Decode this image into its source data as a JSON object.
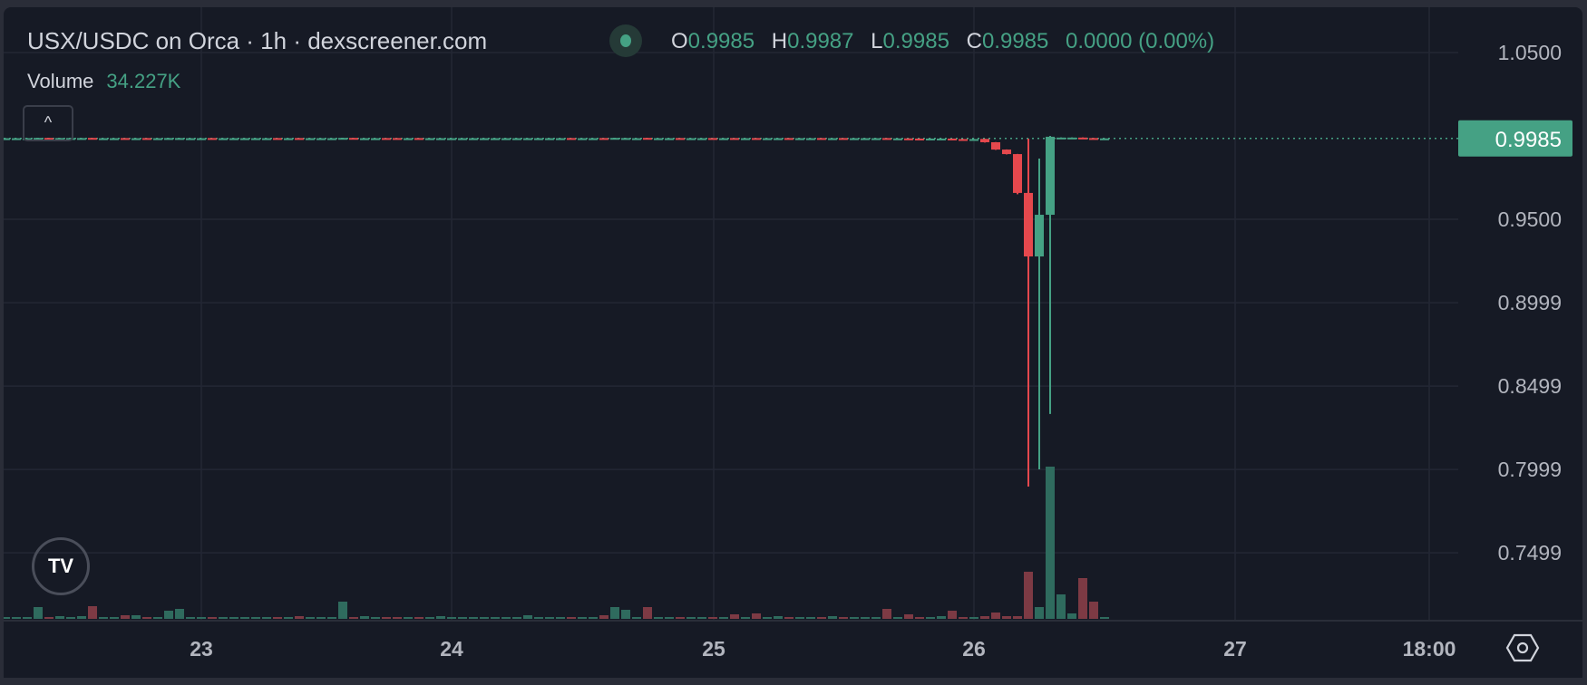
{
  "header": {
    "title": "USX/USDC on Orca · 1h · dexscreener.com",
    "ohlc": {
      "o_label": "O",
      "o": "0.9985",
      "h_label": "H",
      "h": "0.9987",
      "l_label": "L",
      "l": "0.9985",
      "c_label": "C",
      "c": "0.9985",
      "change": "0.0000 (0.00%)"
    },
    "volume_label": "Volume",
    "volume_value": "34.227K",
    "collapse_icon": "chevron-up-icon"
  },
  "colors": {
    "up": "#45a184",
    "down": "#e5484d",
    "vol_up": "#2f6b5e",
    "vol_down": "#7d3a44",
    "bg": "#161a25",
    "grid": "#232734",
    "text": "#b2b5be"
  },
  "chart_data": {
    "type": "candlestick",
    "title": "USX/USDC on Orca · 1h · dexscreener.com",
    "interval": "1h",
    "y_ticks": [
      "1.0500",
      "0.9500",
      "0.8999",
      "0.8499",
      "0.7999",
      "0.7499"
    ],
    "y_tick_values": [
      1.05,
      0.95,
      0.8999,
      0.8499,
      0.7999,
      0.7499
    ],
    "x_ticks": [
      "23",
      "24",
      "25",
      "26",
      "27",
      "18:00"
    ],
    "last_price": "0.9985",
    "grid": true,
    "first_candle": "22 day, 07:00",
    "volume_unit": "K",
    "candles_ohlcv": [
      [
        0.9984,
        0.9987,
        0.9983,
        0.9986,
        34
      ],
      [
        0.9985,
        0.9987,
        0.9984,
        0.9986,
        34
      ],
      [
        0.9985,
        0.9987,
        0.9984,
        0.9986,
        34
      ],
      [
        0.9985,
        0.9989,
        0.9984,
        0.9988,
        221
      ],
      [
        0.9988,
        0.9988,
        0.9985,
        0.9986,
        34
      ],
      [
        0.9986,
        0.9988,
        0.9985,
        0.9987,
        51
      ],
      [
        0.9986,
        0.9988,
        0.9985,
        0.9987,
        34
      ],
      [
        0.9986,
        0.9988,
        0.9985,
        0.9987,
        51
      ],
      [
        0.9988,
        0.9988,
        0.9983,
        0.9985,
        238
      ],
      [
        0.9985,
        0.9987,
        0.9984,
        0.9986,
        34
      ],
      [
        0.9985,
        0.9987,
        0.9984,
        0.9986,
        34
      ],
      [
        0.9987,
        0.9987,
        0.9984,
        0.9985,
        68
      ],
      [
        0.9985,
        0.9987,
        0.9984,
        0.9986,
        68
      ],
      [
        0.9987,
        0.9987,
        0.9984,
        0.9985,
        34
      ],
      [
        0.9985,
        0.9987,
        0.9984,
        0.9986,
        34
      ],
      [
        0.9985,
        0.9988,
        0.9984,
        0.9987,
        153
      ],
      [
        0.9985,
        0.9988,
        0.9984,
        0.9987,
        187
      ],
      [
        0.9985,
        0.9987,
        0.9984,
        0.9986,
        34
      ],
      [
        0.9985,
        0.9987,
        0.9984,
        0.9986,
        34
      ],
      [
        0.9987,
        0.9987,
        0.9984,
        0.9985,
        34
      ],
      [
        0.9985,
        0.9987,
        0.9984,
        0.9986,
        34
      ],
      [
        0.9985,
        0.9987,
        0.9984,
        0.9986,
        34
      ],
      [
        0.9985,
        0.9987,
        0.9984,
        0.9986,
        34
      ],
      [
        0.9985,
        0.9987,
        0.9984,
        0.9986,
        34
      ],
      [
        0.9985,
        0.9987,
        0.9984,
        0.9986,
        34
      ],
      [
        0.9987,
        0.9987,
        0.9984,
        0.9985,
        34
      ],
      [
        0.9985,
        0.9987,
        0.9984,
        0.9986,
        34
      ],
      [
        0.9987,
        0.9987,
        0.9984,
        0.9985,
        51
      ],
      [
        0.9985,
        0.9987,
        0.9984,
        0.9986,
        34
      ],
      [
        0.9985,
        0.9987,
        0.9984,
        0.9986,
        34
      ],
      [
        0.9985,
        0.9987,
        0.9984,
        0.9986,
        34
      ],
      [
        0.9985,
        0.9989,
        0.9984,
        0.9988,
        323
      ],
      [
        0.9988,
        0.9988,
        0.9984,
        0.9986,
        34
      ],
      [
        0.9985,
        0.9987,
        0.9984,
        0.9986,
        51
      ],
      [
        0.9985,
        0.9987,
        0.9984,
        0.9986,
        34
      ],
      [
        0.9987,
        0.9987,
        0.9984,
        0.9985,
        34
      ],
      [
        0.9987,
        0.9987,
        0.9984,
        0.9985,
        34
      ],
      [
        0.9985,
        0.9987,
        0.9984,
        0.9986,
        34
      ],
      [
        0.9987,
        0.9987,
        0.9984,
        0.9985,
        34
      ],
      [
        0.9985,
        0.9987,
        0.9984,
        0.9986,
        34
      ],
      [
        0.9985,
        0.9987,
        0.9984,
        0.9986,
        51
      ],
      [
        0.9985,
        0.9987,
        0.9984,
        0.9986,
        34
      ],
      [
        0.9985,
        0.9987,
        0.9984,
        0.9986,
        34
      ],
      [
        0.9985,
        0.9987,
        0.9984,
        0.9986,
        34
      ],
      [
        0.9985,
        0.9987,
        0.9984,
        0.9986,
        34
      ],
      [
        0.9985,
        0.9987,
        0.9984,
        0.9986,
        34
      ],
      [
        0.9985,
        0.9987,
        0.9984,
        0.9986,
        34
      ],
      [
        0.9985,
        0.9987,
        0.9984,
        0.9986,
        34
      ],
      [
        0.9985,
        0.9987,
        0.9984,
        0.9986,
        68
      ],
      [
        0.9985,
        0.9987,
        0.9984,
        0.9986,
        34
      ],
      [
        0.9985,
        0.9987,
        0.9984,
        0.9986,
        34
      ],
      [
        0.9985,
        0.9987,
        0.9984,
        0.9986,
        34
      ],
      [
        0.9987,
        0.9987,
        0.9984,
        0.9985,
        34
      ],
      [
        0.9985,
        0.9987,
        0.9984,
        0.9986,
        34
      ],
      [
        0.9985,
        0.9987,
        0.9984,
        0.9986,
        34
      ],
      [
        0.9987,
        0.9987,
        0.9984,
        0.9985,
        68
      ],
      [
        0.9985,
        0.9989,
        0.9984,
        0.9988,
        221
      ],
      [
        0.9985,
        0.9988,
        0.9984,
        0.9987,
        170
      ],
      [
        0.9985,
        0.9987,
        0.9984,
        0.9986,
        34
      ],
      [
        0.9988,
        0.9988,
        0.9983,
        0.9985,
        221
      ],
      [
        0.9985,
        0.9987,
        0.9984,
        0.9986,
        34
      ],
      [
        0.9985,
        0.9987,
        0.9984,
        0.9986,
        34
      ],
      [
        0.9987,
        0.9987,
        0.9984,
        0.9985,
        34
      ],
      [
        0.9985,
        0.9987,
        0.9984,
        0.9986,
        34
      ],
      [
        0.9985,
        0.9987,
        0.9984,
        0.9986,
        34
      ],
      [
        0.9987,
        0.9987,
        0.9984,
        0.9985,
        34
      ],
      [
        0.9985,
        0.9987,
        0.9984,
        0.9986,
        34
      ],
      [
        0.9987,
        0.9987,
        0.9983,
        0.9985,
        85
      ],
      [
        0.9985,
        0.9987,
        0.9984,
        0.9986,
        34
      ],
      [
        0.9987,
        0.9987,
        0.9983,
        0.9985,
        102
      ],
      [
        0.9985,
        0.9987,
        0.9984,
        0.9986,
        34
      ],
      [
        0.9985,
        0.9987,
        0.9984,
        0.9986,
        51
      ],
      [
        0.9987,
        0.9987,
        0.9984,
        0.9985,
        34
      ],
      [
        0.9985,
        0.9987,
        0.9984,
        0.9986,
        34
      ],
      [
        0.9985,
        0.9987,
        0.9984,
        0.9986,
        34
      ],
      [
        0.9987,
        0.9987,
        0.9984,
        0.9985,
        34
      ],
      [
        0.9985,
        0.9987,
        0.9984,
        0.9986,
        51
      ],
      [
        0.9987,
        0.9987,
        0.9984,
        0.9985,
        34
      ],
      [
        0.9985,
        0.9987,
        0.9984,
        0.9986,
        34
      ],
      [
        0.9985,
        0.9987,
        0.9984,
        0.9986,
        34
      ],
      [
        0.9985,
        0.9987,
        0.9984,
        0.9986,
        34
      ],
      [
        0.9987,
        0.9987,
        0.9983,
        0.9984,
        187
      ],
      [
        0.9984,
        0.9986,
        0.9983,
        0.9985,
        34
      ],
      [
        0.9985,
        0.9985,
        0.9982,
        0.9983,
        85
      ],
      [
        0.9984,
        0.9985,
        0.9982,
        0.9983,
        34
      ],
      [
        0.9983,
        0.9985,
        0.9982,
        0.9984,
        34
      ],
      [
        0.9983,
        0.9985,
        0.9982,
        0.9984,
        51
      ],
      [
        0.9984,
        0.9984,
        0.998,
        0.9981,
        153
      ],
      [
        0.9981,
        0.9982,
        0.9979,
        0.998,
        34
      ],
      [
        0.9979,
        0.9982,
        0.9978,
        0.9981,
        34
      ],
      [
        0.9982,
        0.9983,
        0.996,
        0.9962,
        51
      ],
      [
        0.9962,
        0.9963,
        0.9916,
        0.9918,
        119
      ],
      [
        0.9918,
        0.9919,
        0.9889,
        0.9891,
        51
      ],
      [
        0.9891,
        0.9892,
        0.965,
        0.9658,
        51
      ],
      [
        0.9658,
        0.9984,
        0.7897,
        0.9277,
        884
      ],
      [
        0.9277,
        0.9864,
        0.8,
        0.9527,
        221
      ],
      [
        0.9527,
        1.0,
        0.8332,
        0.9995,
        2856
      ],
      [
        0.9988,
        0.9991,
        0.9985,
        0.999,
        459
      ],
      [
        0.9988,
        0.9991,
        0.9985,
        0.999,
        102
      ],
      [
        0.999,
        0.9991,
        0.9985,
        0.9987,
        765
      ],
      [
        0.9987,
        0.9988,
        0.9984,
        0.9985,
        323
      ],
      [
        0.9985,
        0.9987,
        0.9985,
        0.9985,
        34.227
      ]
    ]
  }
}
